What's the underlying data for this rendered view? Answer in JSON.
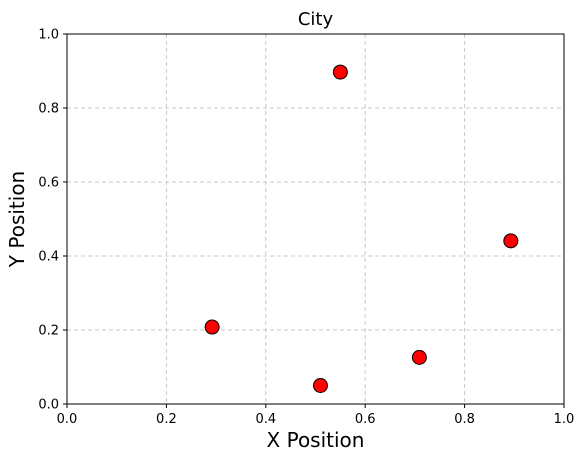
{
  "chart_data": {
    "type": "scatter",
    "title": "City",
    "xlabel": "X Position",
    "ylabel": "Y Position",
    "xlim": [
      0.0,
      1.0
    ],
    "ylim": [
      0.0,
      1.0
    ],
    "xticks": [
      "0.0",
      "0.2",
      "0.4",
      "0.6",
      "0.8",
      "1.0"
    ],
    "yticks": [
      "0.0",
      "0.2",
      "0.4",
      "0.6",
      "0.8",
      "1.0"
    ],
    "grid": true,
    "grid_style": "dashed",
    "point_color": "#ff0000",
    "point_edge_color": "#000000",
    "points": [
      {
        "x": 0.55,
        "y": 0.897
      },
      {
        "x": 0.893,
        "y": 0.441
      },
      {
        "x": 0.292,
        "y": 0.208
      },
      {
        "x": 0.709,
        "y": 0.126
      },
      {
        "x": 0.51,
        "y": 0.05
      }
    ]
  }
}
